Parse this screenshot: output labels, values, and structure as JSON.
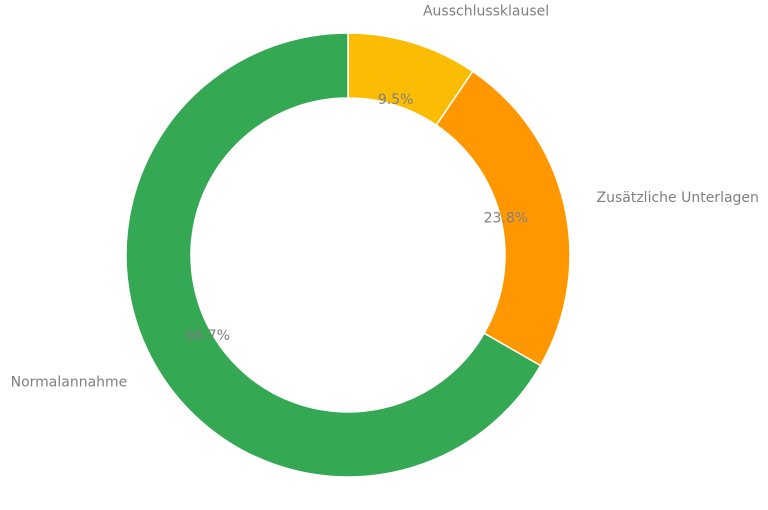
{
  "chart_data": {
    "type": "pie",
    "donut": true,
    "start_angle_deg": 90,
    "direction": "clockwise",
    "slices": [
      {
        "label": "Ausschlussklausel",
        "value": 9.5,
        "pct_label": "9.5%",
        "color": "#FBBC04"
      },
      {
        "label": "Zusätzliche Unterlagen",
        "value": 23.8,
        "pct_label": "23.8%",
        "color": "#FF9800"
      },
      {
        "label": "Normalannahme",
        "value": 66.7,
        "pct_label": "66.7%",
        "color": "#34A853"
      }
    ],
    "title": "",
    "legend": "none"
  }
}
